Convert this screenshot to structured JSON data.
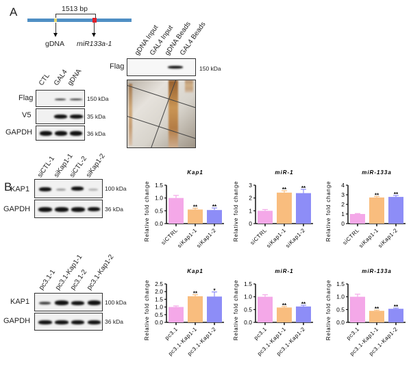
{
  "panelA": {
    "letter": "A",
    "gene_map": {
      "distance": "1513 bp",
      "site1": "gDNA",
      "site2": "miR133a-1",
      "bar_color": "#4f8fc4",
      "site1_color": "#e8d86a",
      "site2_color": "#e0202a"
    },
    "pulldown_blot": {
      "lanes": [
        "gDNA Input",
        "GAL4 Input",
        "gDNA Beads",
        "GAL4 Beads"
      ],
      "row_label": "Flag",
      "size": "150 kDa"
    },
    "expression_blot": {
      "lanes": [
        "CTL",
        "GAL4",
        "gDNA"
      ],
      "rows": [
        {
          "label": "Flag",
          "size": "150 kDa"
        },
        {
          "label": "V5",
          "size": "35 kDa"
        },
        {
          "label": "GAPDH",
          "size": "36 kDa"
        }
      ]
    }
  },
  "panelB": {
    "letter": "B",
    "blot1": {
      "lanes": [
        "siCTL-1",
        "siKap1-1",
        "siCTL-2",
        "siKap1-2"
      ],
      "rows": [
        {
          "label": "KAP1",
          "size": "100 kDa"
        },
        {
          "label": "GAPDH",
          "size": "36 kDa"
        }
      ]
    },
    "blot2": {
      "lanes": [
        "pc3.1-1",
        "pc3.1-Kap1-1",
        "pc3.1-2",
        "pc3.1-Kap1-2"
      ],
      "rows": [
        {
          "label": "KAP1",
          "size": "100 kDa"
        },
        {
          "label": "GAPDH",
          "size": "36 kDa"
        }
      ]
    }
  },
  "chart_data": [
    {
      "type": "bar",
      "title": "Kap1",
      "ylabel": "Relative fold change",
      "categories": [
        "siCTRL",
        "siKap1-1",
        "siKap1-2"
      ],
      "values": [
        1.0,
        0.55,
        0.53
      ],
      "errors": [
        0.1,
        0.05,
        0.08
      ],
      "significance": [
        "",
        "**",
        "**"
      ],
      "ylim": [
        0,
        1.5
      ],
      "yticks": [
        "0.0",
        "0.5",
        "1.0",
        "1.5"
      ],
      "colors": [
        "#f4a8e8",
        "#f9bd7e",
        "#8d8df7"
      ]
    },
    {
      "type": "bar",
      "title": "miR-1",
      "ylabel": "Relative fold change",
      "categories": [
        "siCTRL",
        "siKap1-1",
        "siKap1-2"
      ],
      "values": [
        1.0,
        2.42,
        2.38
      ],
      "errors": [
        0.1,
        0.15,
        0.3
      ],
      "significance": [
        "",
        "**",
        "**"
      ],
      "ylim": [
        0,
        3
      ],
      "yticks": [
        "0",
        "1",
        "2",
        "3"
      ],
      "colors": [
        "#f4a8e8",
        "#f9bd7e",
        "#8d8df7"
      ]
    },
    {
      "type": "bar",
      "title": "miR-133a",
      "ylabel": "Relative fold change",
      "categories": [
        "siCTRL",
        "siKap1-1",
        "siKap1-2"
      ],
      "values": [
        1.0,
        2.72,
        2.78
      ],
      "errors": [
        0.05,
        0.1,
        0.15
      ],
      "significance": [
        "",
        "**",
        "**"
      ],
      "ylim": [
        0,
        4
      ],
      "yticks": [
        "0",
        "1",
        "2",
        "3",
        "4"
      ],
      "colors": [
        "#f4a8e8",
        "#f9bd7e",
        "#8d8df7"
      ]
    },
    {
      "type": "bar",
      "title": "Kap1",
      "ylabel": "Relative fold change",
      "categories": [
        "pc3.1",
        "pc3.1-Kap1-1",
        "pc3.1-Kap1-2"
      ],
      "values": [
        1.0,
        1.7,
        1.68
      ],
      "errors": [
        0.07,
        0.1,
        0.3
      ],
      "significance": [
        "",
        "**",
        "*"
      ],
      "ylim": [
        0,
        2.5
      ],
      "yticks": [
        "0.0",
        "0.5",
        "1.0",
        "1.5",
        "2.0",
        "2.5"
      ],
      "colors": [
        "#f4a8e8",
        "#f9bd7e",
        "#8d8df7"
      ]
    },
    {
      "type": "bar",
      "title": "miR-1",
      "ylabel": "Relative fold change",
      "categories": [
        "pc3.1",
        "pc3.1-Kap1-1",
        "pc3.1-Kap1-2"
      ],
      "values": [
        1.0,
        0.58,
        0.62
      ],
      "errors": [
        0.08,
        0.04,
        0.05
      ],
      "significance": [
        "",
        "**",
        "**"
      ],
      "ylim": [
        0,
        1.5
      ],
      "yticks": [
        "0.0",
        "0.5",
        "1.0",
        "1.5"
      ],
      "colors": [
        "#f4a8e8",
        "#f9bd7e",
        "#8d8df7"
      ]
    },
    {
      "type": "bar",
      "title": "miR-133a",
      "ylabel": "Relative fold change",
      "categories": [
        "pc3.1",
        "pc3.1-Kap1-1",
        "pc3.1-Kap1-2"
      ],
      "values": [
        1.0,
        0.45,
        0.53
      ],
      "errors": [
        0.1,
        0.03,
        0.03
      ],
      "significance": [
        "",
        "**",
        "**"
      ],
      "ylim": [
        0,
        1.5
      ],
      "yticks": [
        "0.0",
        "0.5",
        "1.0",
        "1.5"
      ],
      "colors": [
        "#f4a8e8",
        "#f9bd7e",
        "#8d8df7"
      ]
    }
  ]
}
